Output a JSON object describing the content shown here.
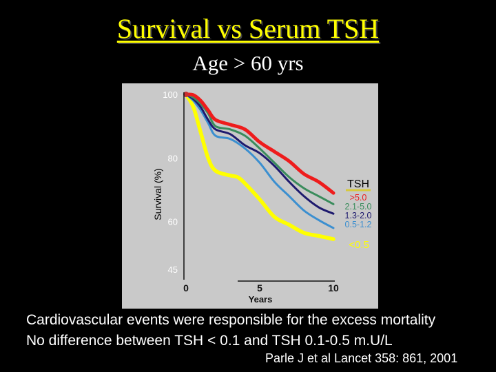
{
  "slide": {
    "title": "Survival vs Serum TSH",
    "subtitle": "Age > 60 yrs",
    "notes": [
      "Cardiovascular events were responsible for the excess mortality",
      "No difference between TSH < 0.1 and TSH 0.1-0.5 m.U/L"
    ],
    "reference": "Parle J et al Lancet 358: 861, 2001"
  },
  "chart_data": {
    "type": "line",
    "title": "",
    "xlabel": "Years",
    "ylabel": "Survival (%)",
    "xlim": [
      0,
      10
    ],
    "ylim": [
      45,
      100
    ],
    "x_ticks": [
      0,
      5,
      10
    ],
    "x_tick_labels": [
      "0",
      "5",
      "10"
    ],
    "y_ticks": [
      100,
      80,
      60,
      45
    ],
    "y_tick_labels": [
      "100",
      "80",
      "60",
      "45"
    ],
    "grid": false,
    "legend_title": "TSH",
    "legend_position": "right",
    "series": [
      {
        "name": ">5.0",
        "color": "#ee1c1c",
        "x": [
          0,
          0.5,
          1.0,
          1.5,
          2.0,
          3.0,
          4.0,
          5.0,
          6.0,
          7.0,
          8.0,
          9.0,
          10.0
        ],
        "y": [
          100,
          99.8,
          98,
          95,
          92,
          90.5,
          89,
          85,
          82,
          79,
          75,
          72.5,
          69
        ]
      },
      {
        "name": "2.1-5.0",
        "color": "#3a8c5c",
        "x": [
          0,
          0.5,
          1.0,
          1.5,
          2.0,
          3.0,
          4.0,
          5.0,
          6.0,
          7.0,
          8.0,
          9.0,
          10.0
        ],
        "y": [
          100,
          99,
          97,
          94,
          90,
          89,
          87,
          83,
          78.5,
          74,
          70.5,
          68,
          65.5
        ]
      },
      {
        "name": "1.3-2.0",
        "color": "#1e1a6e",
        "x": [
          0,
          0.5,
          1.0,
          1.5,
          2.0,
          3.0,
          4.0,
          5.0,
          6.0,
          7.0,
          8.0,
          9.0,
          10.0
        ],
        "y": [
          100,
          98.5,
          96,
          92,
          89,
          87.5,
          84,
          81.5,
          77.5,
          72.5,
          68,
          64.5,
          62.5
        ]
      },
      {
        "name": "0.5-1.2",
        "color": "#3b8fd0",
        "x": [
          0,
          0.5,
          1.0,
          1.5,
          2.0,
          3.0,
          4.0,
          5.0,
          6.0,
          7.0,
          8.0,
          9.0,
          10.0
        ],
        "y": [
          100,
          98,
          95,
          91,
          87,
          86,
          83,
          78.5,
          72.5,
          68,
          63.5,
          60.5,
          58
        ]
      },
      {
        "name": "<0.5",
        "color": "#ffff00",
        "x": [
          0,
          0.5,
          1.0,
          1.5,
          2.0,
          3.0,
          3.5,
          4.0,
          5.0,
          6.0,
          7.0,
          8.0,
          9.0,
          10.0
        ],
        "y": [
          100,
          96,
          88,
          80,
          76,
          74.5,
          74,
          72,
          67,
          61.5,
          59,
          56.5,
          55.5,
          54.5
        ]
      }
    ]
  },
  "colors": {
    "background": "#000000",
    "plot_panel": "#c9c9c9",
    "title": "#ffff00",
    "text": "#ffffff",
    "legend_title_underline": "#d7c93c"
  }
}
